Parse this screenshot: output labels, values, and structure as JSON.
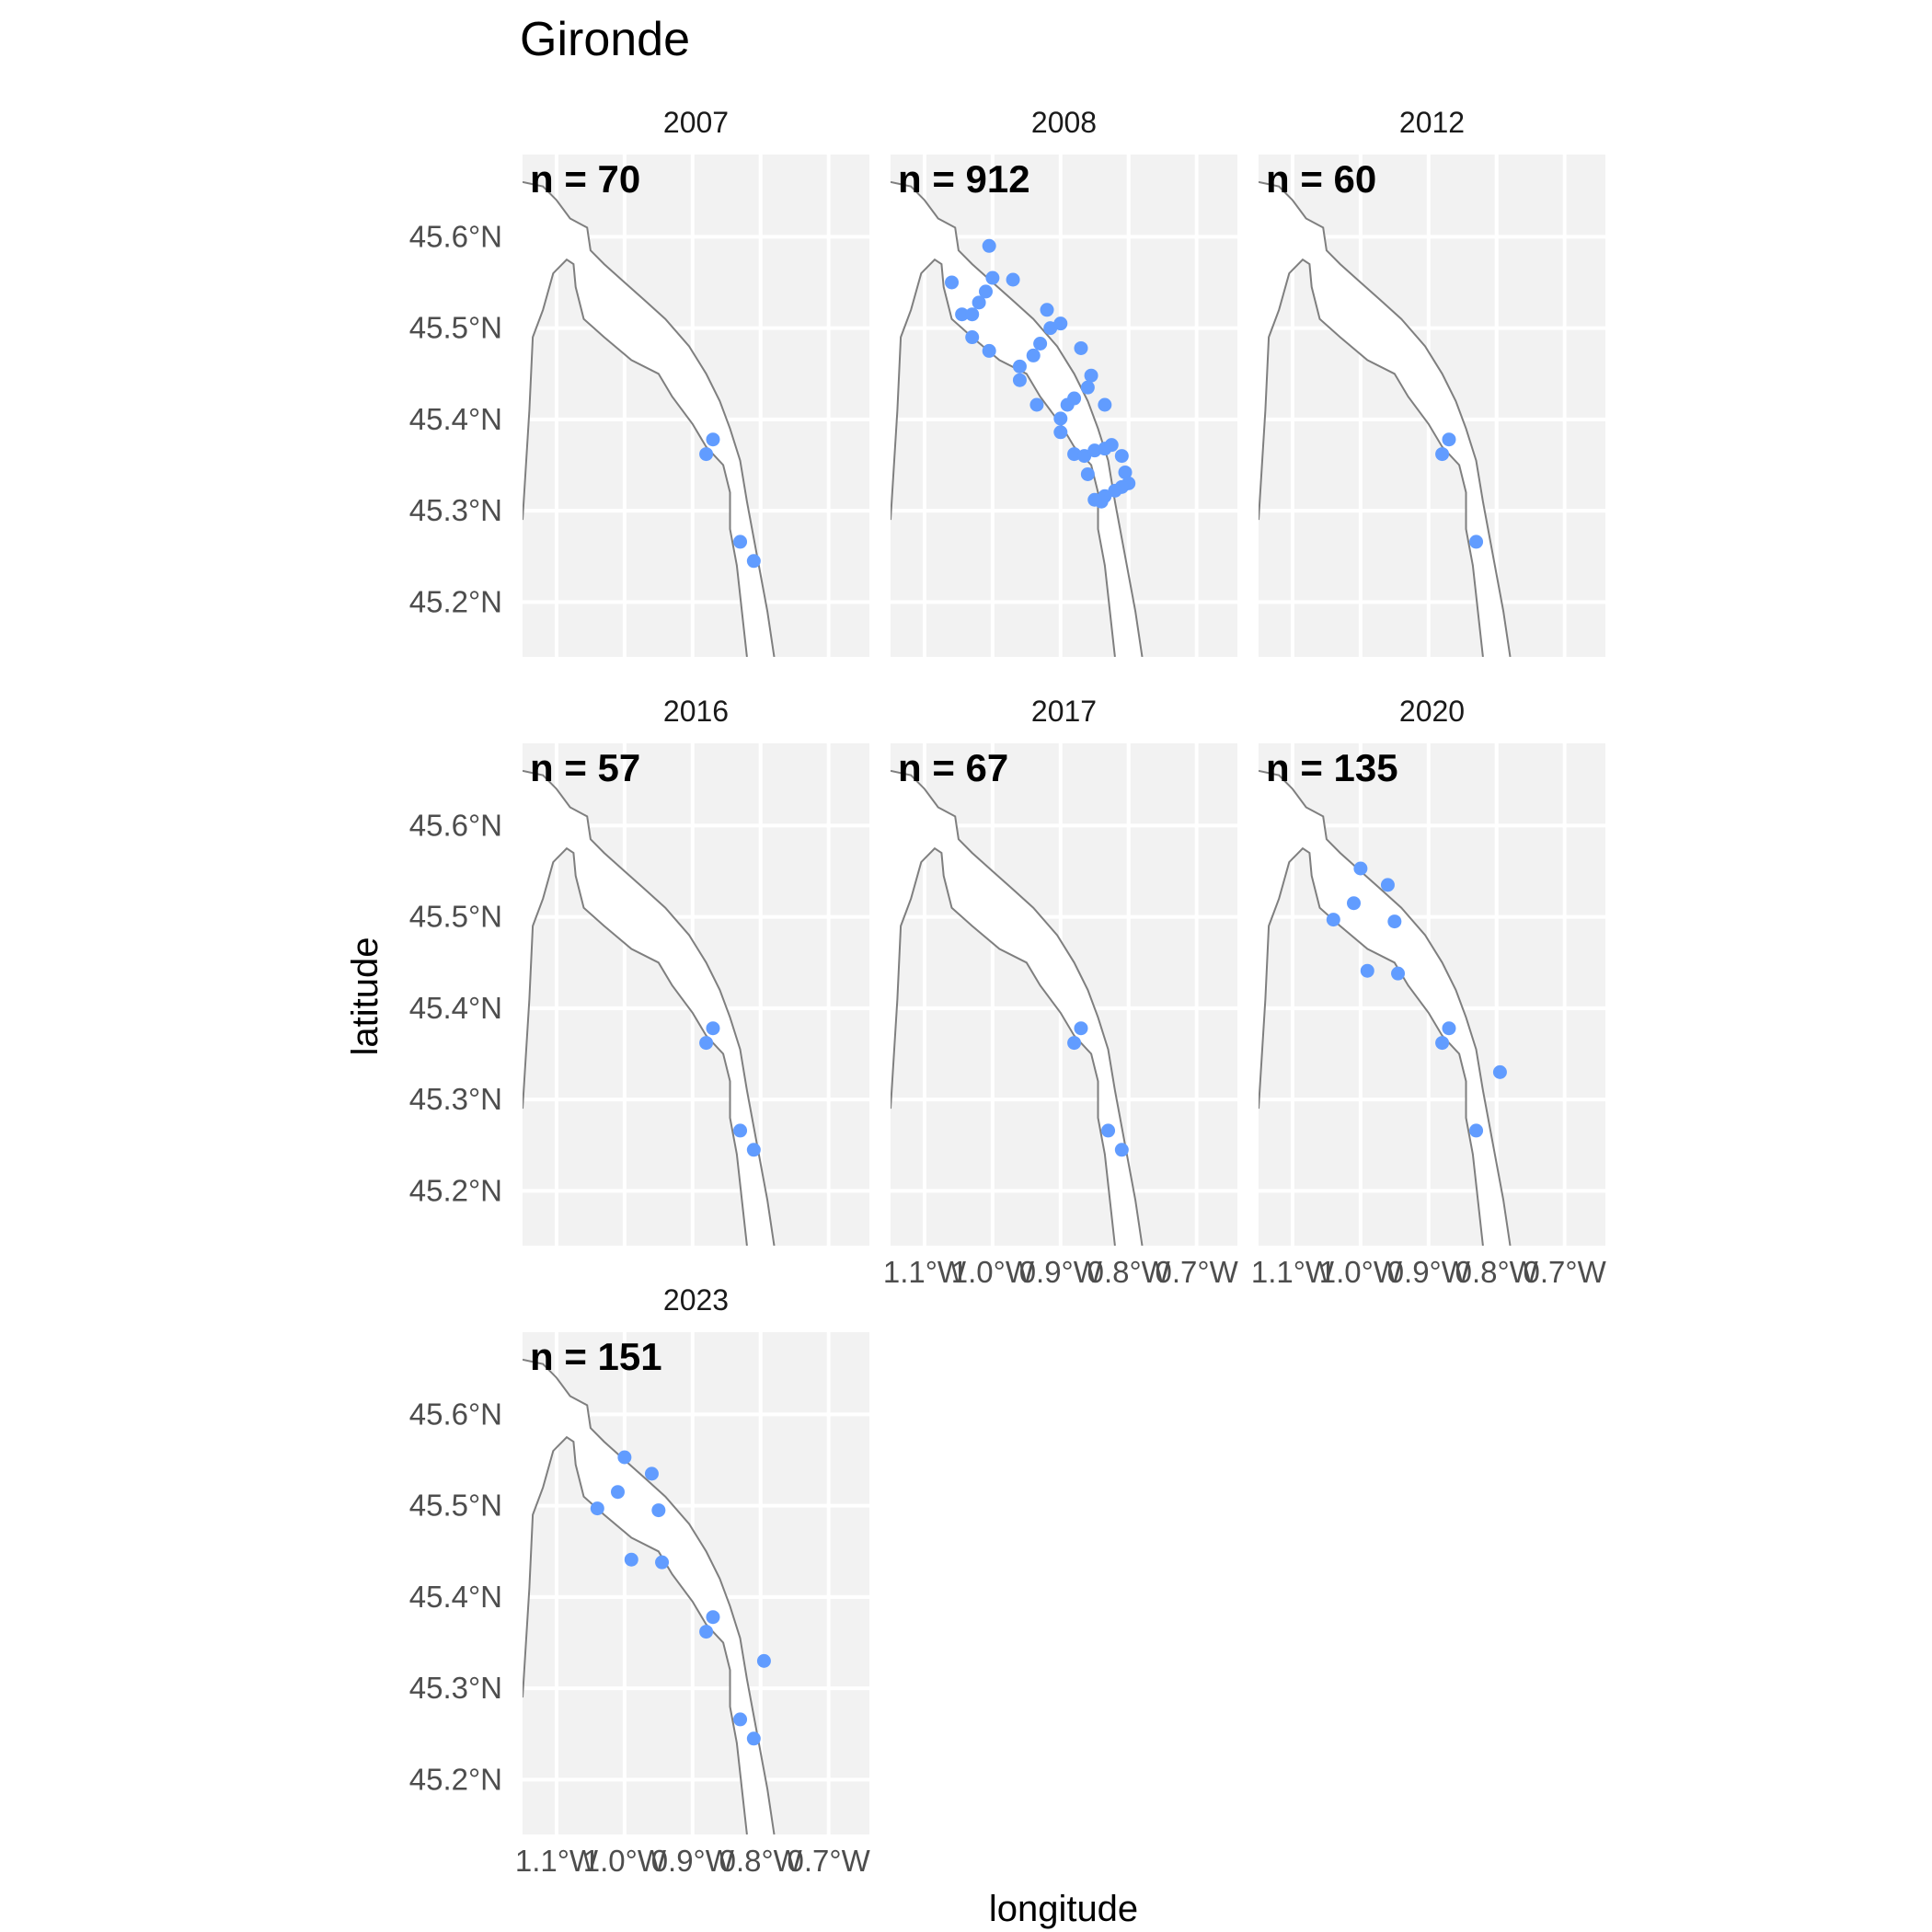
{
  "chart_data": {
    "type": "scatter",
    "title": "Gironde",
    "xlabel": "longitude",
    "ylabel": "latitude",
    "xlim": [
      -1.15,
      -0.64
    ],
    "ylim": [
      45.14,
      45.69
    ],
    "grid": true,
    "x_ticks": [
      -1.1,
      -1.0,
      -0.9,
      -0.8,
      -0.7
    ],
    "x_tick_labels": [
      "1.1°W",
      "1.0°W",
      "0.9°W",
      "0.8°W",
      "0.7°W"
    ],
    "y_ticks": [
      45.2,
      45.3,
      45.4,
      45.5,
      45.6
    ],
    "y_tick_labels": [
      "45.2°N",
      "45.3°N",
      "45.4°N",
      "45.5°N",
      "45.6°N"
    ],
    "point_color": "#619CFF",
    "panel_background": "#F2F2F2",
    "estuary_outline": {
      "north_bank": [
        [
          -1.15,
          45.66
        ],
        [
          -1.12,
          45.655
        ],
        [
          -1.1,
          45.64
        ],
        [
          -1.08,
          45.62
        ],
        [
          -1.055,
          45.61
        ],
        [
          -1.05,
          45.585
        ],
        [
          -1.03,
          45.57
        ],
        [
          -1.0,
          45.55
        ],
        [
          -0.97,
          45.53
        ],
        [
          -0.94,
          45.51
        ],
        [
          -0.905,
          45.48
        ],
        [
          -0.88,
          45.45
        ],
        [
          -0.86,
          45.42
        ],
        [
          -0.845,
          45.39
        ],
        [
          -0.83,
          45.355
        ],
        [
          -0.82,
          45.31
        ],
        [
          -0.81,
          45.27
        ],
        [
          -0.8,
          45.23
        ],
        [
          -0.79,
          45.19
        ],
        [
          -0.78,
          45.14
        ]
      ],
      "south_bank": [
        [
          -1.15,
          45.29
        ],
        [
          -1.14,
          45.41
        ],
        [
          -1.135,
          45.49
        ],
        [
          -1.12,
          45.52
        ],
        [
          -1.105,
          45.56
        ],
        [
          -1.085,
          45.575
        ],
        [
          -1.075,
          45.57
        ],
        [
          -1.072,
          45.545
        ],
        [
          -1.06,
          45.51
        ],
        [
          -1.03,
          45.49
        ],
        [
          -0.99,
          45.465
        ],
        [
          -0.95,
          45.45
        ],
        [
          -0.93,
          45.425
        ],
        [
          -0.9,
          45.395
        ],
        [
          -0.88,
          45.37
        ],
        [
          -0.855,
          45.35
        ],
        [
          -0.845,
          45.32
        ],
        [
          -0.845,
          45.28
        ],
        [
          -0.835,
          45.24
        ],
        [
          -0.82,
          45.14
        ]
      ]
    },
    "panels": [
      {
        "label": "2007",
        "count_label": "n = 70",
        "points": [
          [
            -0.87,
            45.378
          ],
          [
            -0.88,
            45.362
          ],
          [
            -0.83,
            45.266
          ],
          [
            -0.81,
            45.245
          ]
        ]
      },
      {
        "label": "2008",
        "count_label": "n = 912",
        "points": [
          [
            -1.06,
            45.55
          ],
          [
            -1.045,
            45.515
          ],
          [
            -1.03,
            45.515
          ],
          [
            -1.02,
            45.528
          ],
          [
            -1.01,
            45.54
          ],
          [
            -1.005,
            45.59
          ],
          [
            -1.0,
            45.555
          ],
          [
            -0.97,
            45.553
          ],
          [
            -1.03,
            45.49
          ],
          [
            -1.005,
            45.475
          ],
          [
            -0.96,
            45.458
          ],
          [
            -0.94,
            45.47
          ],
          [
            -0.93,
            45.483
          ],
          [
            -0.92,
            45.52
          ],
          [
            -0.915,
            45.5
          ],
          [
            -0.9,
            45.505
          ],
          [
            -0.96,
            45.443
          ],
          [
            -0.935,
            45.416
          ],
          [
            -0.9,
            45.401
          ],
          [
            -0.89,
            45.416
          ],
          [
            -0.88,
            45.423
          ],
          [
            -0.86,
            45.435
          ],
          [
            -0.855,
            45.448
          ],
          [
            -0.87,
            45.478
          ],
          [
            -0.835,
            45.416
          ],
          [
            -0.9,
            45.386
          ],
          [
            -0.88,
            45.362
          ],
          [
            -0.865,
            45.36
          ],
          [
            -0.86,
            45.34
          ],
          [
            -0.85,
            45.366
          ],
          [
            -0.835,
            45.368
          ],
          [
            -0.825,
            45.372
          ],
          [
            -0.81,
            45.36
          ],
          [
            -0.805,
            45.342
          ],
          [
            -0.8,
            45.33
          ],
          [
            -0.81,
            45.326
          ],
          [
            -0.82,
            45.322
          ],
          [
            -0.835,
            45.316
          ],
          [
            -0.84,
            45.31
          ],
          [
            -0.85,
            45.312
          ]
        ]
      },
      {
        "label": "2012",
        "count_label": "n = 60",
        "points": [
          [
            -0.87,
            45.378
          ],
          [
            -0.88,
            45.362
          ],
          [
            -0.83,
            45.266
          ]
        ]
      },
      {
        "label": "2016",
        "count_label": "n = 57",
        "points": [
          [
            -0.87,
            45.378
          ],
          [
            -0.88,
            45.362
          ],
          [
            -0.83,
            45.266
          ],
          [
            -0.81,
            45.245
          ]
        ]
      },
      {
        "label": "2017",
        "count_label": "n = 67",
        "points": [
          [
            -0.87,
            45.378
          ],
          [
            -0.88,
            45.362
          ],
          [
            -0.83,
            45.266
          ],
          [
            -0.81,
            45.245
          ]
        ]
      },
      {
        "label": "2020",
        "count_label": "n = 135",
        "points": [
          [
            -1.0,
            45.553
          ],
          [
            -0.96,
            45.535
          ],
          [
            -0.95,
            45.495
          ],
          [
            -1.01,
            45.515
          ],
          [
            -1.04,
            45.497
          ],
          [
            -0.99,
            45.441
          ],
          [
            -0.945,
            45.438
          ],
          [
            -0.87,
            45.378
          ],
          [
            -0.88,
            45.362
          ],
          [
            -0.795,
            45.33
          ],
          [
            -0.83,
            45.266
          ]
        ]
      },
      {
        "label": "2023",
        "count_label": "n = 151",
        "points": [
          [
            -1.0,
            45.553
          ],
          [
            -0.96,
            45.535
          ],
          [
            -0.95,
            45.495
          ],
          [
            -1.01,
            45.515
          ],
          [
            -1.04,
            45.497
          ],
          [
            -0.99,
            45.441
          ],
          [
            -0.945,
            45.438
          ],
          [
            -0.87,
            45.378
          ],
          [
            -0.88,
            45.362
          ],
          [
            -0.795,
            45.33
          ],
          [
            -0.83,
            45.266
          ],
          [
            -0.81,
            45.245
          ]
        ]
      }
    ]
  }
}
